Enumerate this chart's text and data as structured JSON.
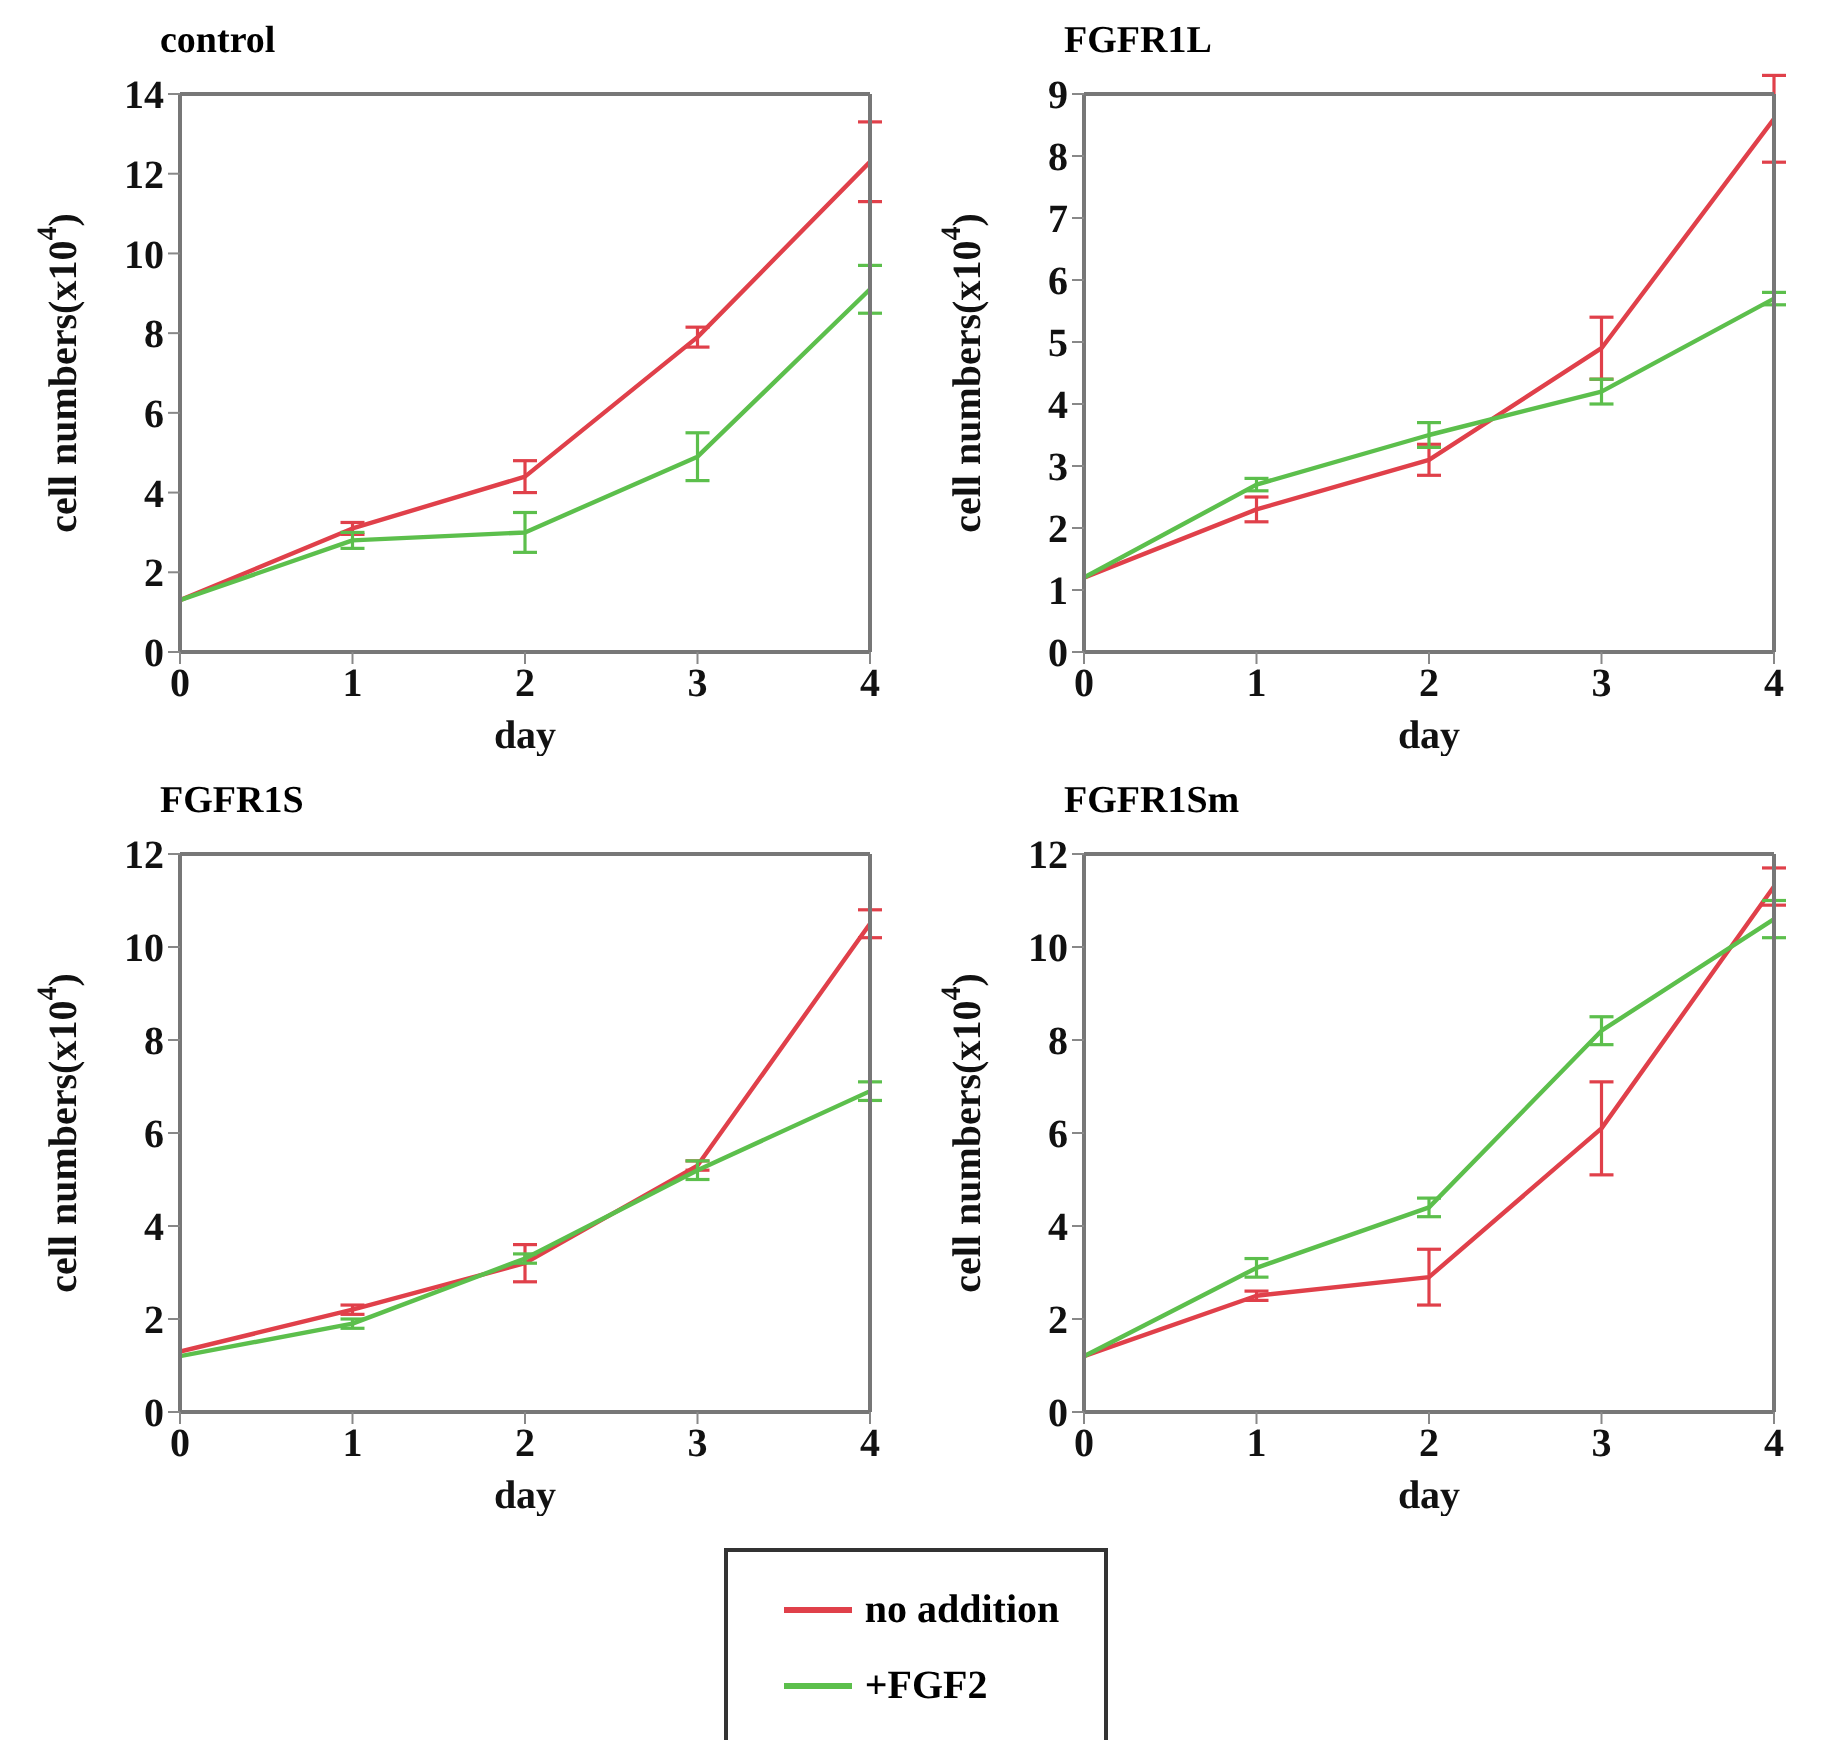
{
  "chart_data": [
    {
      "type": "line",
      "title": "control",
      "xlabel": "day",
      "ylabel": "cell numbers(x10$^{4}$)",
      "x": [
        0,
        1,
        2,
        3,
        4
      ],
      "xlim": [
        0,
        4
      ],
      "xticks": [
        0,
        1,
        2,
        3,
        4
      ],
      "ylim": [
        0,
        14
      ],
      "yticks": [
        0,
        2,
        4,
        6,
        8,
        10,
        12,
        14
      ],
      "grid": false,
      "marker": "none",
      "line_style": "solid",
      "legend": "bottom",
      "series": [
        {
          "name": "no addition",
          "color": "#e0404a",
          "values": [
            1.3,
            3.1,
            4.4,
            7.9,
            12.3
          ],
          "errors": [
            null,
            0.15,
            0.4,
            0.25,
            1.0
          ]
        },
        {
          "name": "+FGF2",
          "color": "#5cbf4c",
          "values": [
            1.3,
            2.8,
            3.0,
            4.9,
            9.1
          ],
          "errors": [
            null,
            0.2,
            0.5,
            0.6,
            0.6
          ]
        }
      ]
    },
    {
      "type": "line",
      "title": "FGFR1L",
      "xlabel": "day",
      "ylabel": "cell numbers(x10$^{4}$)",
      "x": [
        0,
        1,
        2,
        3,
        4
      ],
      "xlim": [
        0,
        4
      ],
      "xticks": [
        0,
        1,
        2,
        3,
        4
      ],
      "ylim": [
        0,
        9
      ],
      "yticks": [
        0,
        1,
        2,
        3,
        4,
        5,
        6,
        7,
        8,
        9
      ],
      "grid": false,
      "marker": "none",
      "line_style": "solid",
      "series": [
        {
          "color": "#e0404a",
          "values": [
            1.2,
            2.3,
            3.1,
            4.9,
            8.6
          ],
          "errors": [
            null,
            0.2,
            0.25,
            0.5,
            0.7
          ]
        },
        {
          "color": "#5cbf4c",
          "values": [
            1.2,
            2.7,
            3.5,
            4.2,
            5.7
          ],
          "errors": [
            null,
            0.1,
            0.2,
            0.2,
            0.1
          ]
        }
      ]
    },
    {
      "type": "line",
      "title": "FGFR1S",
      "xlabel": "day",
      "ylabel": "cell numbers(x10$^{4}$)",
      "x": [
        0,
        1,
        2,
        3,
        4
      ],
      "xlim": [
        0,
        4
      ],
      "xticks": [
        0,
        1,
        2,
        3,
        4
      ],
      "ylim": [
        0,
        12
      ],
      "yticks": [
        0,
        2,
        4,
        6,
        8,
        10,
        12
      ],
      "grid": false,
      "marker": "none",
      "line_style": "solid",
      "series": [
        {
          "color": "#e0404a",
          "values": [
            1.3,
            2.2,
            3.2,
            5.3,
            10.5
          ],
          "errors": [
            null,
            0.1,
            0.4,
            0.1,
            0.3
          ]
        },
        {
          "color": "#5cbf4c",
          "values": [
            1.2,
            1.9,
            3.3,
            5.2,
            6.9
          ],
          "errors": [
            null,
            0.1,
            0.1,
            0.2,
            0.2
          ]
        }
      ]
    },
    {
      "type": "line",
      "title": "FGFR1Sm",
      "xlabel": "day",
      "ylabel": "cell numbers(x10$^{4}$)",
      "x": [
        0,
        1,
        2,
        3,
        4
      ],
      "xlim": [
        0,
        4
      ],
      "xticks": [
        0,
        1,
        2,
        3,
        4
      ],
      "ylim": [
        0,
        12
      ],
      "yticks": [
        0,
        2,
        4,
        6,
        8,
        10,
        12
      ],
      "grid": false,
      "marker": "none",
      "line_style": "solid",
      "series": [
        {
          "color": "#e0404a",
          "values": [
            1.2,
            2.5,
            2.9,
            6.1,
            11.3
          ],
          "errors": [
            null,
            0.1,
            0.6,
            1.0,
            0.4
          ]
        },
        {
          "color": "#5cbf4c",
          "values": [
            1.2,
            3.1,
            4.4,
            8.2,
            10.6
          ],
          "errors": [
            null,
            0.2,
            0.2,
            0.3,
            0.4
          ]
        }
      ]
    }
  ]
}
